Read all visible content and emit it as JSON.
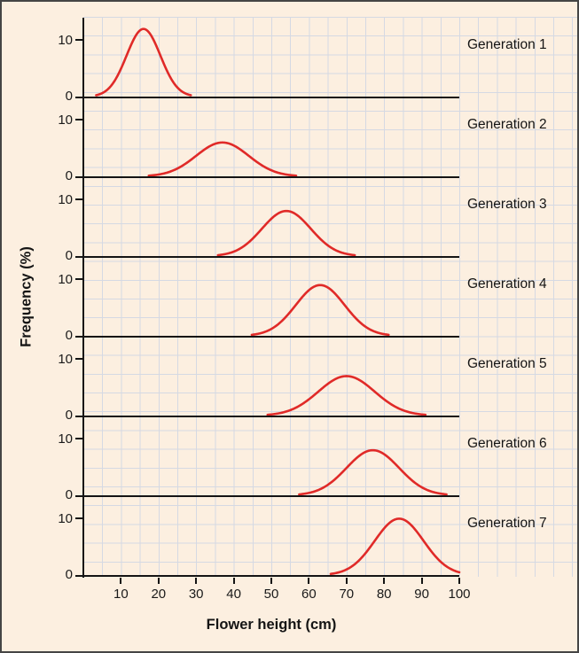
{
  "figure": {
    "background": "#fcefe0",
    "border_color": "#454545"
  },
  "chart_data": {
    "type": "line",
    "description": "Seven stacked frequency-distribution curves of flower height, one per generation, showing the distribution shifting to taller heights over generations",
    "xlabel": "Flower height (cm)",
    "ylabel": "Frequency (%)",
    "xlim": [
      0,
      100
    ],
    "panel_ylim": [
      0,
      14
    ],
    "x_ticks": [
      10,
      20,
      30,
      40,
      50,
      60,
      70,
      80,
      90,
      100
    ],
    "y_tick_labels": {
      "upper": "10",
      "zero": "0"
    },
    "grid": "on",
    "legend_position": "right-of-each-panel",
    "curve_color": "#e02a28",
    "grid_color": "#ccd4e4",
    "axis_color": "#141414",
    "panels": [
      {
        "label": "Generation 1",
        "mean_cm": 16,
        "sd_cm": 4.5,
        "peak_pct": 12
      },
      {
        "label": "Generation 2",
        "mean_cm": 37,
        "sd_cm": 7.0,
        "peak_pct": 6
      },
      {
        "label": "Generation 3",
        "mean_cm": 54,
        "sd_cm": 6.5,
        "peak_pct": 8
      },
      {
        "label": "Generation 4",
        "mean_cm": 63,
        "sd_cm": 6.5,
        "peak_pct": 9
      },
      {
        "label": "Generation 5",
        "mean_cm": 70,
        "sd_cm": 7.5,
        "peak_pct": 7
      },
      {
        "label": "Generation 6",
        "mean_cm": 77,
        "sd_cm": 7.0,
        "peak_pct": 8
      },
      {
        "label": "Generation 7",
        "mean_cm": 84,
        "sd_cm": 6.5,
        "peak_pct": 10
      }
    ]
  }
}
